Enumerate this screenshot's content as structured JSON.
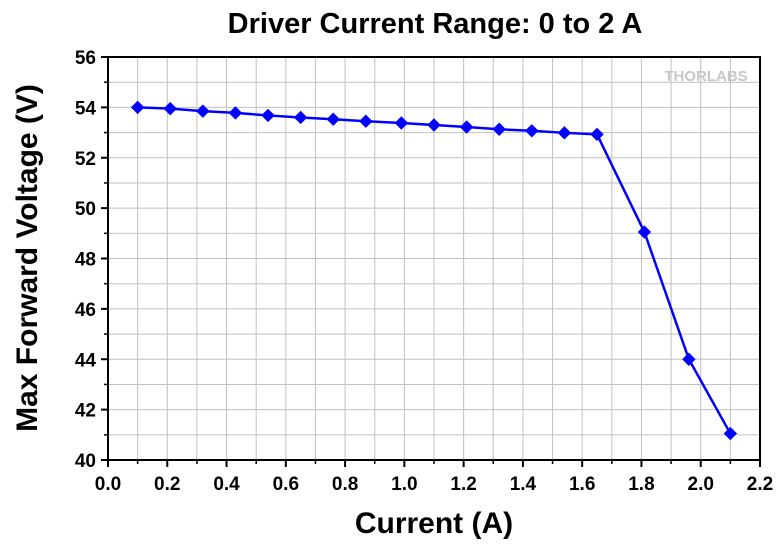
{
  "chart_data": {
    "type": "line",
    "title": "Driver Current Range: 0 to 2 A",
    "xlabel": "Current (A)",
    "ylabel": "Max Forward Voltage (V)",
    "xlim": [
      0.0,
      2.2
    ],
    "ylim": [
      40,
      56
    ],
    "xticks": [
      "0.0",
      "0.2",
      "0.4",
      "0.6",
      "0.8",
      "1.0",
      "1.2",
      "1.4",
      "1.6",
      "1.8",
      "2.0",
      "2.2"
    ],
    "yticks": [
      "40",
      "42",
      "44",
      "46",
      "48",
      "50",
      "52",
      "54",
      "56"
    ],
    "grid": true,
    "legend": "none",
    "watermark": "THORLABS",
    "series": [
      {
        "color": "#0000ff",
        "marker": "diamond",
        "x": [
          0.1,
          0.21,
          0.32,
          0.43,
          0.54,
          0.65,
          0.76,
          0.87,
          0.99,
          1.1,
          1.21,
          1.32,
          1.43,
          1.54,
          1.65,
          1.81,
          1.96,
          2.1
        ],
        "y": [
          54.0,
          53.95,
          53.85,
          53.78,
          53.68,
          53.6,
          53.53,
          53.45,
          53.38,
          53.3,
          53.22,
          53.13,
          53.07,
          52.99,
          52.93,
          49.05,
          44.0,
          41.05
        ]
      }
    ]
  }
}
